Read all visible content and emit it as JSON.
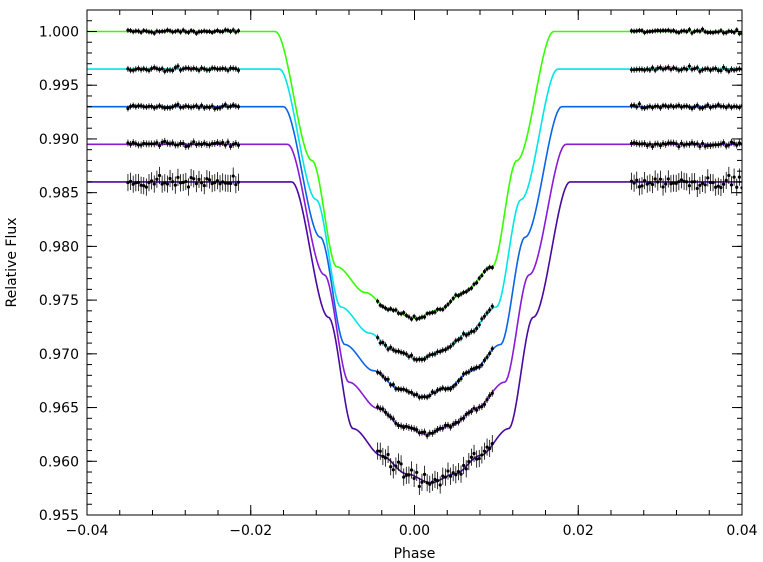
{
  "chart_data": {
    "type": "line",
    "title": "",
    "xlabel": "Phase",
    "ylabel": "Relative Flux",
    "xlim": [
      -0.04,
      0.04
    ],
    "ylim": [
      0.955,
      1.002
    ],
    "xticks": [
      -0.04,
      -0.02,
      0.0,
      0.02,
      0.04
    ],
    "xtick_labels": [
      "−0.04",
      "−0.02",
      "0.00",
      "0.02",
      "0.04"
    ],
    "yticks": [
      0.955,
      0.96,
      0.965,
      0.97,
      0.975,
      0.98,
      0.985,
      0.99,
      0.995,
      1.0
    ],
    "ytick_labels": [
      "0.955",
      "0.960",
      "0.965",
      "0.970",
      "0.975",
      "0.980",
      "0.985",
      "0.990",
      "0.995",
      "1.000"
    ],
    "grid": false,
    "legend": "none",
    "transit": {
      "contact_outer": 0.017,
      "contact_inner": 0.0095,
      "x": [
        -0.04,
        -0.017,
        -0.0125,
        -0.0095,
        -0.006,
        -0.003,
        0.0,
        0.003,
        0.006,
        0.0095,
        0.0125,
        0.017,
        0.04
      ],
      "shape": [
        0.0,
        0.0,
        0.45,
        0.82,
        0.91,
        0.97,
        1.0,
        0.97,
        0.91,
        0.82,
        0.45,
        0.0,
        0.0
      ]
    },
    "series": [
      {
        "color": "#33ff00",
        "baseline": 1.0,
        "min": 0.9733,
        "x_shift": 0.0,
        "scatter": 0.00012
      },
      {
        "color": "#00e5e5",
        "baseline": 0.9965,
        "min": 0.9695,
        "x_shift": 0.0005,
        "scatter": 0.00014
      },
      {
        "color": "#0a64e6",
        "baseline": 0.993,
        "min": 0.966,
        "x_shift": 0.001,
        "scatter": 0.00014
      },
      {
        "color": "#8a1ad6",
        "baseline": 0.9895,
        "min": 0.9625,
        "x_shift": 0.0015,
        "scatter": 0.00016
      },
      {
        "color": "#4a0aa0",
        "baseline": 0.986,
        "min": 0.958,
        "x_shift": 0.002,
        "scatter": 0.0004
      }
    ],
    "observed_phase_ranges": [
      [
        -0.035,
        -0.0215
      ],
      [
        -0.0045,
        0.0095
      ],
      [
        0.0265,
        0.04
      ]
    ]
  }
}
